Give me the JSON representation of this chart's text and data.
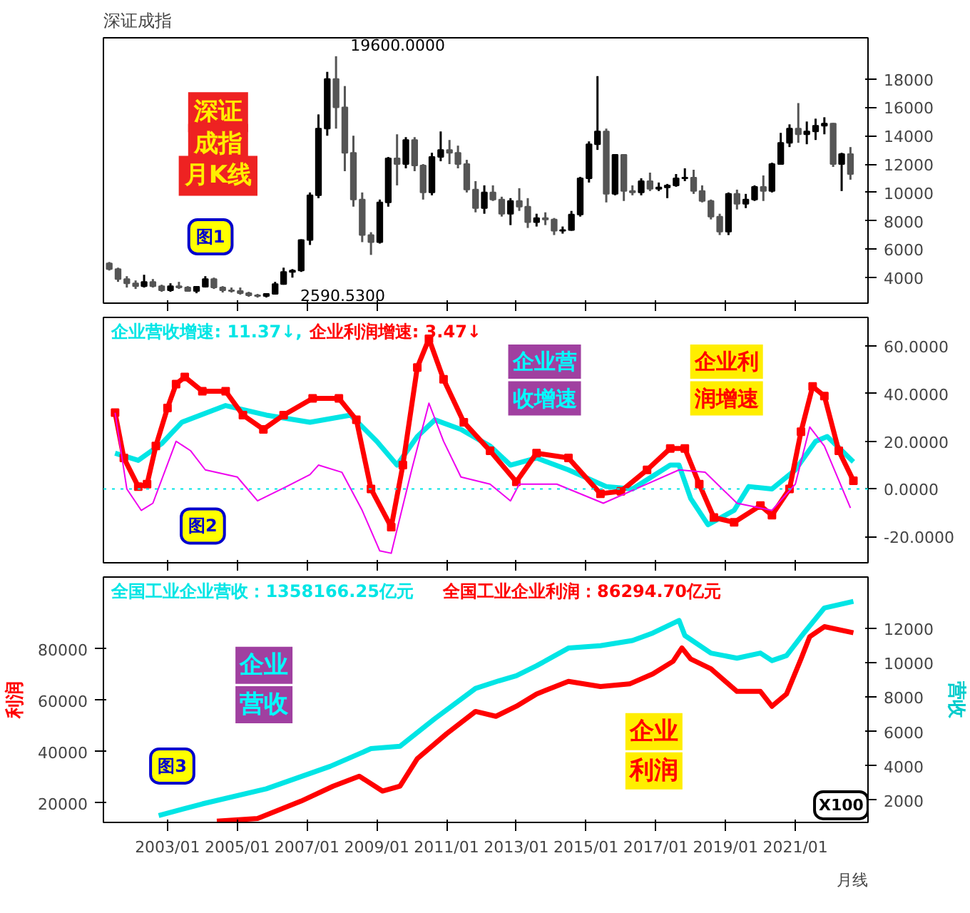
{
  "chart_data": [
    {
      "type": "candlestick",
      "title": "深证成指",
      "colors": [
        "#555555",
        "#555555",
        "#555555",
        "#555555",
        "#000000",
        "#555555",
        "#555555",
        "#000000",
        "#555555",
        "#555555",
        "#000000",
        "#000000",
        "#555555",
        "#555555",
        "#555555",
        "#555555",
        "#555555",
        "#555555",
        "#000000",
        "#000000",
        "#000000",
        "#000000",
        "#000000",
        "#000000",
        "#000000",
        "#000000",
        "#555555",
        "#555555",
        "#555555",
        "#555555",
        "#555555",
        "#000000",
        "#000000",
        "#555555",
        "#000000",
        "#555555",
        "#555555",
        "#000000",
        "#000000",
        "#555555",
        "#555555",
        "#555555",
        "#555555",
        "#000000",
        "#555555",
        "#555555",
        "#000000",
        "#555555",
        "#555555",
        "#000000",
        "#555555",
        "#555555",
        "#000000",
        "#000000",
        "#000000",
        "#000000",
        "#000000",
        "#555555",
        "#000000",
        "#555555",
        "#555555",
        "#000000",
        "#555555",
        "#000000",
        "#000000",
        "#000000",
        "#000000",
        "#555555",
        "#555555",
        "#555555",
        "#555555",
        "#000000",
        "#555555",
        "#000000",
        "#000000",
        "#555555",
        "#000000",
        "#000000",
        "#000000",
        "#555555",
        "#000000",
        "#000000",
        "#000000",
        "#555555",
        "#000000",
        "#555555"
      ],
      "xlim": [
        "2001-03",
        "2023-02"
      ],
      "xticks": [
        {
          "value": "2003-01",
          "label": null
        },
        {
          "value": "2005-01",
          "label": null
        },
        {
          "value": "2007-01",
          "label": null
        },
        {
          "value": "2009-01",
          "label": null
        },
        {
          "value": "2011-01",
          "label": null
        },
        {
          "value": "2013-01",
          "label": null
        },
        {
          "value": "2015-01",
          "label": null
        },
        {
          "value": "2017-01",
          "label": null
        },
        {
          "value": "2019-01",
          "label": null
        },
        {
          "value": "2021-01",
          "label": null
        }
      ],
      "ylim": [
        2200,
        20900
      ],
      "yticks": [
        4000,
        6000,
        8000,
        10000,
        12000,
        14000,
        16000,
        18000
      ],
      "tick_labels": "y",
      "x": [
        "2001-05",
        "2001-08",
        "2001-11",
        "2002-02",
        "2002-05",
        "2002-08",
        "2002-11",
        "2003-02",
        "2003-05",
        "2003-08",
        "2003-11",
        "2004-02",
        "2004-05",
        "2004-08",
        "2004-11",
        "2005-02",
        "2005-05",
        "2005-08",
        "2005-11",
        "2006-02",
        "2006-05",
        "2006-08",
        "2006-11",
        "2007-02",
        "2007-05",
        "2007-08",
        "2007-11",
        "2008-02",
        "2008-05",
        "2008-08",
        "2008-11",
        "2009-02",
        "2009-05",
        "2009-08",
        "2009-11",
        "2010-02",
        "2010-05",
        "2010-08",
        "2010-11",
        "2011-02",
        "2011-05",
        "2011-08",
        "2011-11",
        "2012-02",
        "2012-05",
        "2012-08",
        "2012-11",
        "2013-02",
        "2013-05",
        "2013-08",
        "2013-11",
        "2014-02",
        "2014-05",
        "2014-08",
        "2014-11",
        "2015-02",
        "2015-05",
        "2015-08",
        "2015-11",
        "2016-02",
        "2016-05",
        "2016-08",
        "2016-11",
        "2017-02",
        "2017-05",
        "2017-08",
        "2017-11",
        "2018-02",
        "2018-05",
        "2018-08",
        "2018-11",
        "2019-02",
        "2019-05",
        "2019-08",
        "2019-11",
        "2020-02",
        "2020-05",
        "2020-08",
        "2020-11",
        "2021-02",
        "2021-05",
        "2021-08",
        "2021-11",
        "2022-02",
        "2022-05",
        "2022-08"
      ],
      "ohlc": [
        [
          5000,
          5100,
          4500,
          4600
        ],
        [
          4600,
          4700,
          3700,
          3900
        ],
        [
          3900,
          4100,
          3300,
          3600
        ],
        [
          3600,
          3800,
          3200,
          3400
        ],
        [
          3400,
          4200,
          3300,
          3700
        ],
        [
          3700,
          3900,
          3300,
          3400
        ],
        [
          3400,
          3500,
          3000,
          3100
        ],
        [
          3100,
          3600,
          3000,
          3400
        ],
        [
          3400,
          3700,
          3200,
          3300
        ],
        [
          3300,
          3400,
          3000,
          3050
        ],
        [
          3050,
          3400,
          2900,
          3350
        ],
        [
          3350,
          4100,
          3300,
          3900
        ],
        [
          3900,
          4000,
          3200,
          3300
        ],
        [
          3300,
          3400,
          2950,
          3100
        ],
        [
          3100,
          3300,
          2950,
          3050
        ],
        [
          3050,
          3300,
          2800,
          2900
        ],
        [
          2900,
          3000,
          2650,
          2750
        ],
        [
          2750,
          2850,
          2590.53,
          2700
        ],
        [
          2700,
          2900,
          2600,
          2850
        ],
        [
          2850,
          3700,
          2800,
          3550
        ],
        [
          3550,
          4700,
          3500,
          4400
        ],
        [
          4400,
          4600,
          4000,
          4500
        ],
        [
          4500,
          6700,
          4400,
          6650
        ],
        [
          6650,
          10000,
          6300,
          9800
        ],
        [
          9800,
          15500,
          9600,
          14500
        ],
        [
          14500,
          18500,
          14000,
          18000
        ],
        [
          18000,
          19600,
          14500,
          16000
        ],
        [
          16000,
          17500,
          11500,
          12800
        ],
        [
          12800,
          14000,
          9000,
          9500
        ],
        [
          9500,
          10000,
          6500,
          7000
        ],
        [
          7000,
          7200,
          5600,
          6500
        ],
        [
          6500,
          9500,
          6400,
          9300
        ],
        [
          9300,
          12500,
          9000,
          12400
        ],
        [
          12400,
          14100,
          10500,
          12000
        ],
        [
          12000,
          13900,
          11700,
          13700
        ],
        [
          13700,
          13900,
          11500,
          11900
        ],
        [
          11900,
          12000,
          9500,
          10000
        ],
        [
          10000,
          12800,
          9800,
          12500
        ],
        [
          12500,
          14300,
          12200,
          13000
        ],
        [
          13000,
          13700,
          12000,
          12800
        ],
        [
          12800,
          13300,
          11700,
          12000
        ],
        [
          12000,
          12300,
          10000,
          10200
        ],
        [
          10200,
          10800,
          8600,
          8900
        ],
        [
          8900,
          10500,
          8500,
          10000
        ],
        [
          10000,
          10500,
          9400,
          9500
        ],
        [
          9500,
          9700,
          8300,
          8500
        ],
        [
          8500,
          9600,
          7700,
          9400
        ],
        [
          9400,
          10300,
          8700,
          9000
        ],
        [
          9000,
          9600,
          7500,
          7900
        ],
        [
          7900,
          8500,
          7600,
          8200
        ],
        [
          8200,
          8600,
          7700,
          8100
        ],
        [
          8100,
          8200,
          7000,
          7300
        ],
        [
          7300,
          7600,
          7100,
          7350
        ],
        [
          7350,
          8700,
          7300,
          8450
        ],
        [
          8450,
          11100,
          8300,
          11000
        ],
        [
          11000,
          13600,
          10700,
          13400
        ],
        [
          13400,
          18200,
          13000,
          14300
        ],
        [
          14300,
          14500,
          9300,
          9900
        ],
        [
          9900,
          12700,
          9800,
          12650
        ],
        [
          12650,
          12700,
          9400,
          10100
        ],
        [
          10100,
          10500,
          9800,
          10000
        ],
        [
          10000,
          11000,
          9800,
          10800
        ],
        [
          10800,
          11400,
          10100,
          10250
        ],
        [
          10250,
          10700,
          10100,
          10350
        ],
        [
          10350,
          10600,
          9600,
          10500
        ],
        [
          10500,
          11300,
          10400,
          11000
        ],
        [
          11000,
          11700,
          10800,
          11050
        ],
        [
          11050,
          11600,
          9900,
          10100
        ],
        [
          10100,
          10500,
          9300,
          9400
        ],
        [
          9400,
          9500,
          8100,
          8300
        ],
        [
          8300,
          8500,
          7000,
          7240
        ],
        [
          7240,
          10000,
          7000,
          9900
        ],
        [
          9900,
          10200,
          8800,
          9200
        ],
        [
          9200,
          9900,
          8900,
          9500
        ],
        [
          9500,
          10500,
          9400,
          10400
        ],
        [
          10400,
          11200,
          9400,
          10100
        ],
        [
          10100,
          12100,
          10000,
          12000
        ],
        [
          12000,
          14200,
          12000,
          13500
        ],
        [
          13500,
          14800,
          13200,
          14500
        ],
        [
          14500,
          16300,
          13500,
          14100
        ],
        [
          14100,
          15000,
          13400,
          14300
        ],
        [
          14300,
          15200,
          13700,
          14700
        ],
        [
          14700,
          15300,
          14100,
          14850
        ],
        [
          14850,
          14900,
          11800,
          12000
        ],
        [
          12000,
          12800,
          10100,
          12700
        ],
        [
          12700,
          13200,
          10900,
          11300
        ]
      ],
      "annotations": [
        "深证",
        "成指",
        "月K线",
        "图1",
        {
          "text": "19600.0000",
          "x": "2007-11",
          "y": 19600
        },
        {
          "text": "2590.5300",
          "x": "2005-08",
          "y": 2590.53
        }
      ]
    },
    {
      "type": "line",
      "xlim": [
        "2001-03",
        "2023-02"
      ],
      "ylim": [
        -31,
        72
      ],
      "yticks": [
        {
          "value": 60,
          "label": "60.0000"
        },
        {
          "value": 40,
          "label": "40.0000"
        },
        {
          "value": 20,
          "label": "20.0000"
        },
        {
          "value": 0,
          "label": "0.0000"
        },
        {
          "value": -20,
          "label": "-20.0000"
        }
      ],
      "xticks": [
        {
          "value": "2003-01",
          "label": null
        },
        {
          "value": "2005-01",
          "label": null
        },
        {
          "value": "2007-01",
          "label": null
        },
        {
          "value": "2009-01",
          "label": null
        },
        {
          "value": "2011-01",
          "label": null
        },
        {
          "value": "2013-01",
          "label": null
        },
        {
          "value": "2015-01",
          "label": null
        },
        {
          "value": "2017-01",
          "label": null
        },
        {
          "value": "2019-01",
          "label": null
        },
        {
          "value": "2021-01",
          "label": null
        }
      ],
      "tick_labels": "y",
      "ref_lines": [
        {
          "axis": "y",
          "value": 0,
          "color": "#00e5e5",
          "line_style": "dotted"
        }
      ],
      "series": [
        {
          "name": "企业营收增速: 11.37↓,",
          "color": "#00e5e5",
          "x": [
            "2001-07",
            "2002-03",
            "2002-11",
            "2003-06",
            "2004-09",
            "2005-11",
            "2007-02",
            "2008-04",
            "2009-01",
            "2009-08",
            "2010-03",
            "2010-09",
            "2011-06",
            "2012-04",
            "2012-11",
            "2013-08",
            "2014-07",
            "2015-08",
            "2016-05",
            "2017-06",
            "2017-09",
            "2018-01",
            "2018-07",
            "2019-04",
            "2019-09",
            "2020-05",
            "2021-01",
            "2021-08",
            "2021-12",
            "2022-09"
          ],
          "values": [
            15,
            12,
            19,
            28,
            35,
            31,
            28,
            31,
            20,
            10,
            22,
            29,
            25,
            18,
            10,
            13,
            8,
            1,
            0,
            10,
            10,
            -4,
            -15,
            -9,
            1,
            0,
            8,
            20,
            22,
            11.37
          ]
        },
        {
          "name": "企业利润增速: 3.47↓",
          "color": "#ff0000",
          "marker": "square",
          "x": [
            "2001-07",
            "2001-10",
            "2002-03",
            "2002-06",
            "2002-09",
            "2003-01",
            "2003-04",
            "2003-07",
            "2004-01",
            "2004-09",
            "2005-03",
            "2005-10",
            "2006-05",
            "2007-03",
            "2007-12",
            "2008-06",
            "2008-11",
            "2009-06",
            "2009-10",
            "2010-03",
            "2010-07",
            "2010-12",
            "2011-07",
            "2012-04",
            "2013-01",
            "2013-08",
            "2014-07",
            "2015-06",
            "2016-01",
            "2016-10",
            "2017-06",
            "2017-11",
            "2018-04",
            "2018-09",
            "2019-04",
            "2020-01",
            "2020-05",
            "2020-11",
            "2021-03",
            "2021-07",
            "2021-11",
            "2022-04",
            "2022-09"
          ],
          "values": [
            32,
            13,
            1,
            2,
            18,
            34,
            44,
            47,
            41,
            41,
            31,
            25,
            31,
            38,
            38,
            29,
            0,
            -16,
            10,
            51,
            63,
            46,
            28,
            16,
            3,
            15,
            13,
            -2,
            -1,
            8,
            17,
            17,
            2,
            -12,
            -14,
            -7,
            -11,
            0,
            24,
            43,
            39,
            16,
            3.47
          ]
        },
        {
          "color": "#ee00ee",
          "x": [
            "2001-07",
            "2001-11",
            "2002-04",
            "2002-08",
            "2003-04",
            "2003-09",
            "2004-02",
            "2005-01",
            "2005-08",
            "2006-06",
            "2007-02",
            "2007-05",
            "2008-01",
            "2008-08",
            "2009-02",
            "2009-06",
            "2010-01",
            "2010-07",
            "2010-12",
            "2011-06",
            "2012-04",
            "2012-11",
            "2013-02",
            "2014-03",
            "2015-07",
            "2016-08",
            "2017-09",
            "2018-06",
            "2019-05",
            "2020-05",
            "2021-01",
            "2021-06",
            "2021-11",
            "2022-08"
          ],
          "values": [
            32,
            0,
            -9,
            -6,
            20,
            16,
            8,
            5,
            -5,
            1,
            6,
            10,
            7,
            -9,
            -26,
            -27,
            8,
            36,
            20,
            5,
            2,
            -5,
            2,
            2,
            -6,
            1,
            8,
            7,
            -6,
            -9,
            2,
            26,
            18,
            -8
          ]
        }
      ],
      "annotations": [
        "企业营",
        "收增速",
        "企业利",
        "润增速",
        "图2"
      ]
    },
    {
      "type": "line",
      "xlim": [
        "2001-03",
        "2023-02"
      ],
      "ylim": [
        12500,
        108000
      ],
      "yticks": [
        20000,
        40000,
        60000,
        80000
      ],
      "y2lim": [
        700,
        15000
      ],
      "y2ticks": [
        2000,
        4000,
        6000,
        8000,
        10000,
        12000
      ],
      "xticks": [
        {
          "value": "2003-01",
          "label": "2003/01"
        },
        {
          "value": "2005-01",
          "label": "2005/01"
        },
        {
          "value": "2007-01",
          "label": "2007/01"
        },
        {
          "value": "2009-01",
          "label": "2009/01"
        },
        {
          "value": "2011-01",
          "label": "2011/01"
        },
        {
          "value": "2013-01",
          "label": "2013/01"
        },
        {
          "value": "2015-01",
          "label": "2015/01"
        },
        {
          "value": "2017-01",
          "label": "2017/01"
        },
        {
          "value": "2019-01",
          "label": "2019/01"
        },
        {
          "value": "2021-01",
          "label": "2021/01"
        }
      ],
      "ylabel": "利润",
      "y2label": "营收",
      "series": [
        {
          "name": "全国工业企业营收：1358166.25亿元",
          "color": "#00e5e5",
          "axis": "y2",
          "x": [
            "2002-10",
            "2004-01",
            "2005-11",
            "2007-09",
            "2008-11",
            "2009-09",
            "2010-09",
            "2011-11",
            "2012-07",
            "2013-01",
            "2013-08",
            "2014-07",
            "2015-06",
            "2016-05",
            "2016-12",
            "2017-09",
            "2017-11",
            "2018-08",
            "2019-05",
            "2020-01",
            "2020-05",
            "2020-10",
            "2021-04",
            "2021-11",
            "2022-09"
          ],
          "values": [
            1100,
            1780,
            2660,
            3970,
            5000,
            5140,
            6750,
            8510,
            8950,
            9250,
            9830,
            10860,
            11000,
            11300,
            11740,
            12470,
            11590,
            10570,
            10270,
            10570,
            10130,
            10420,
            11740,
            13200,
            13582
          ]
        },
        {
          "name": "全国工业企业利润：86294.70亿元",
          "color": "#ff0000",
          "x": [
            "2004-06",
            "2005-08",
            "2006-11",
            "2007-10",
            "2008-07",
            "2009-03",
            "2009-09",
            "2010-03",
            "2011-01",
            "2011-11",
            "2012-06",
            "2013-01",
            "2013-08",
            "2014-07",
            "2015-06",
            "2016-04",
            "2016-12",
            "2017-07",
            "2017-10",
            "2018-01",
            "2018-08",
            "2019-05",
            "2020-01",
            "2020-05",
            "2020-10",
            "2021-03",
            "2021-06",
            "2021-11",
            "2022-09"
          ],
          "values": [
            13000,
            14000,
            20800,
            26600,
            30500,
            24700,
            26600,
            37300,
            47000,
            55700,
            53800,
            57700,
            62500,
            67400,
            65400,
            66400,
            70300,
            75200,
            80400,
            76100,
            72300,
            63500,
            63500,
            57700,
            62500,
            76100,
            84800,
            88700,
            86294.7
          ]
        }
      ],
      "annotations": [
        "企业",
        "营收",
        "企业",
        "利润",
        "图3",
        "X100",
        "月线"
      ]
    }
  ]
}
